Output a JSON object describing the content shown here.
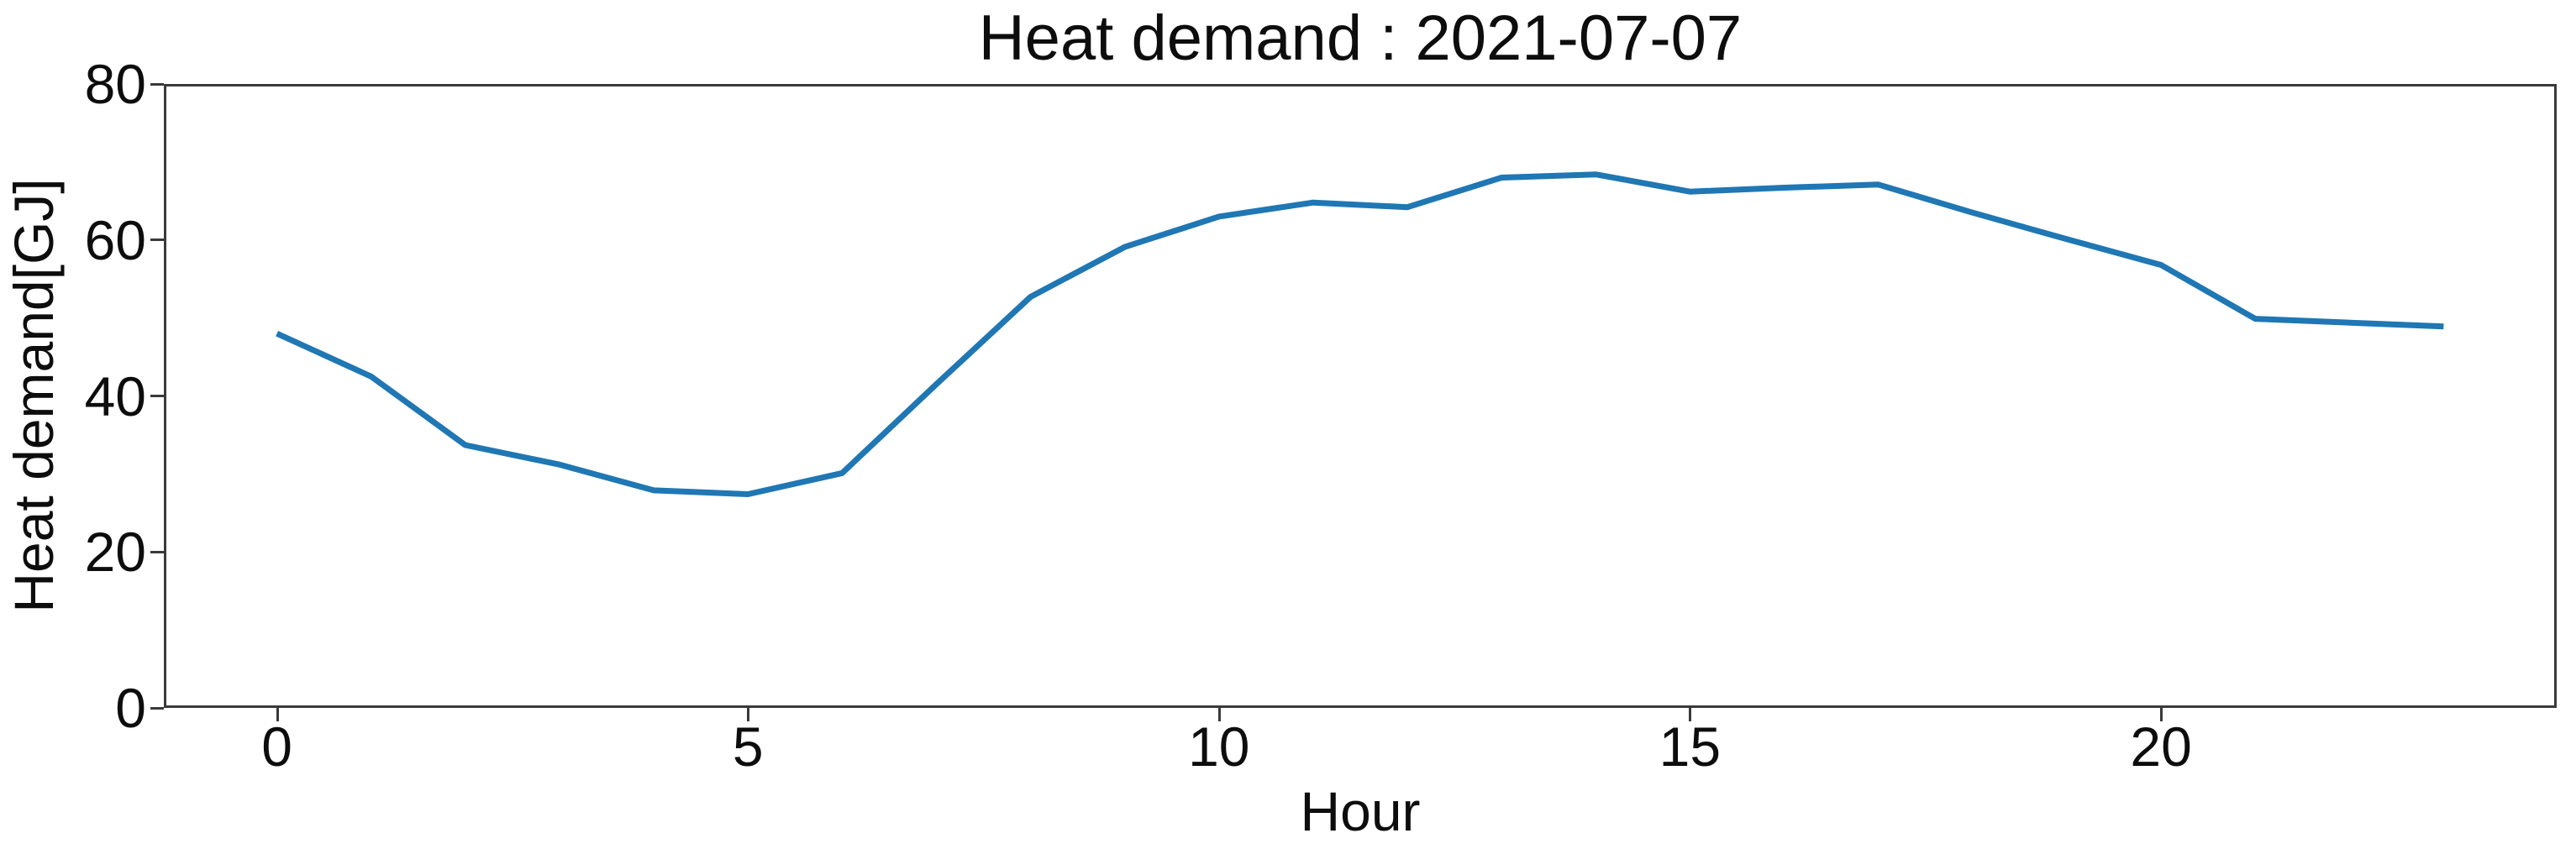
{
  "figure": {
    "title": "Heat demand : 2021-07-07",
    "xlabel": "Hour",
    "ylabel": "Heat demand[GJ]"
  },
  "chart_data": {
    "type": "line",
    "title": "Heat demand : 2021-07-07",
    "xlabel": "Hour",
    "ylabel": "Heat demand[GJ]",
    "x": [
      0,
      1,
      2,
      3,
      4,
      5,
      6,
      7,
      8,
      9,
      10,
      11,
      12,
      13,
      14,
      15,
      16,
      17,
      18,
      19,
      20,
      21,
      22,
      23
    ],
    "series": [
      {
        "name": "Heat demand",
        "color": "#1f77b4",
        "values": [
          48.0,
          42.5,
          33.7,
          31.2,
          27.9,
          27.4,
          30.1,
          41.5,
          52.7,
          59.1,
          63.0,
          64.8,
          64.2,
          68.0,
          68.4,
          66.2,
          66.7,
          67.1,
          63.5,
          60.1,
          56.8,
          49.9,
          49.4,
          48.9
        ]
      }
    ],
    "xticks": [
      0,
      5,
      10,
      15,
      20
    ],
    "yticks": [
      0,
      20,
      40,
      60,
      80
    ],
    "xlim": [
      -1.2,
      24.2
    ],
    "ylim": [
      0,
      80
    ],
    "grid": false,
    "legend_position": "none",
    "spine_color": "#3a3a3a",
    "background_color": "#ffffff"
  }
}
